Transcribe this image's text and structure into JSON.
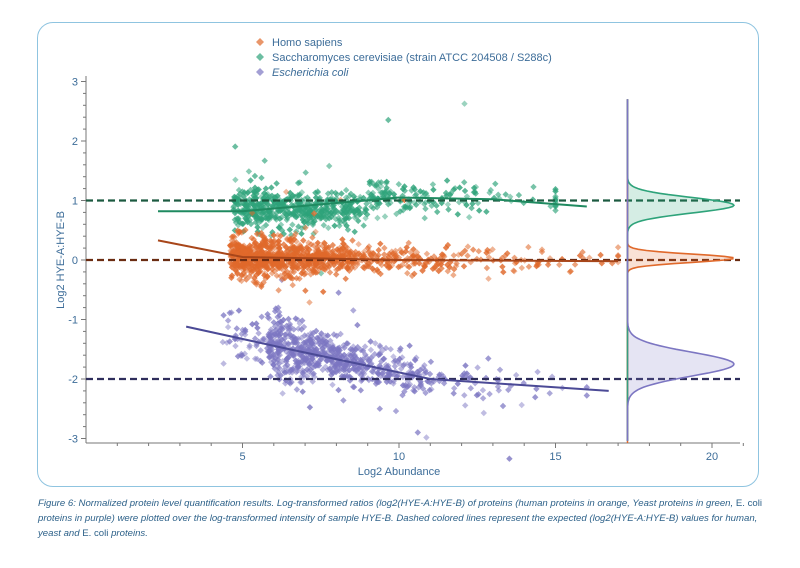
{
  "chart_data": {
    "type": "scatter",
    "xlabel": "Log2 Abundance",
    "ylabel": "Log2 HYE-A:HYE-B",
    "xlim": [
      0,
      21
    ],
    "ylim": [
      -3,
      3
    ],
    "xticks": [
      "5",
      "10",
      "15",
      "20"
    ],
    "yticks": [
      "3",
      "2",
      "1",
      "0",
      "-1",
      "-2",
      "-3"
    ],
    "grid": false,
    "legend_position": "top-center",
    "series": [
      {
        "name": "Homo sapiens",
        "color": "#e0692b",
        "expected": 0,
        "center_y": 0.02,
        "x_range": [
          4.5,
          17
        ],
        "count_hint": "dense",
        "trend": [
          [
            2.3,
            0.33
          ],
          [
            5,
            0.05
          ],
          [
            10,
            0.0
          ],
          [
            17,
            -0.02
          ]
        ],
        "density_peak": 0.03,
        "density_sd": 0.07
      },
      {
        "name": "Saccharomyces cerevisiae (strain ATCC 204508 / S288c)",
        "color": "#2ea37a",
        "expected": 1,
        "center_y": 0.95,
        "x_range": [
          4.5,
          15
        ],
        "trend": [
          [
            2.3,
            0.82
          ],
          [
            5,
            0.82
          ],
          [
            10,
            1.05
          ],
          [
            13,
            1.02
          ],
          [
            16,
            0.9
          ]
        ],
        "density_peak": 0.92,
        "density_sd": 0.13
      },
      {
        "name": "Escherichia coli",
        "color": "#7c76c2",
        "expected": -2,
        "center_y": -1.75,
        "x_range": [
          4,
          16
        ],
        "trend": [
          [
            3.2,
            -1.12
          ],
          [
            6.5,
            -1.5
          ],
          [
            11,
            -2.0
          ],
          [
            16.7,
            -2.2
          ]
        ],
        "density_peak": -1.75,
        "density_sd": 0.2
      }
    ],
    "expected_line_colors": [
      "#6b2c12",
      "#1c5a40",
      "#2f2e5c"
    ],
    "density_baseline_x": 17.3
  },
  "caption": {
    "text1": "Figure 6: Normalized protein level quantification results. Log-transformed ratios (log2(HYE-A:HYE-B) of proteins (human proteins in orange, Yeast proteins in green, ",
    "text2": "E. coli",
    "text3": " proteins in purple) were plotted over the log-transformed intensity of sample HYE-B. Dashed colored lines represent the expected (log2(HYE-A:HYE-B) values for human, yeast and ",
    "text4": "E. coli",
    "text5": " proteins."
  }
}
